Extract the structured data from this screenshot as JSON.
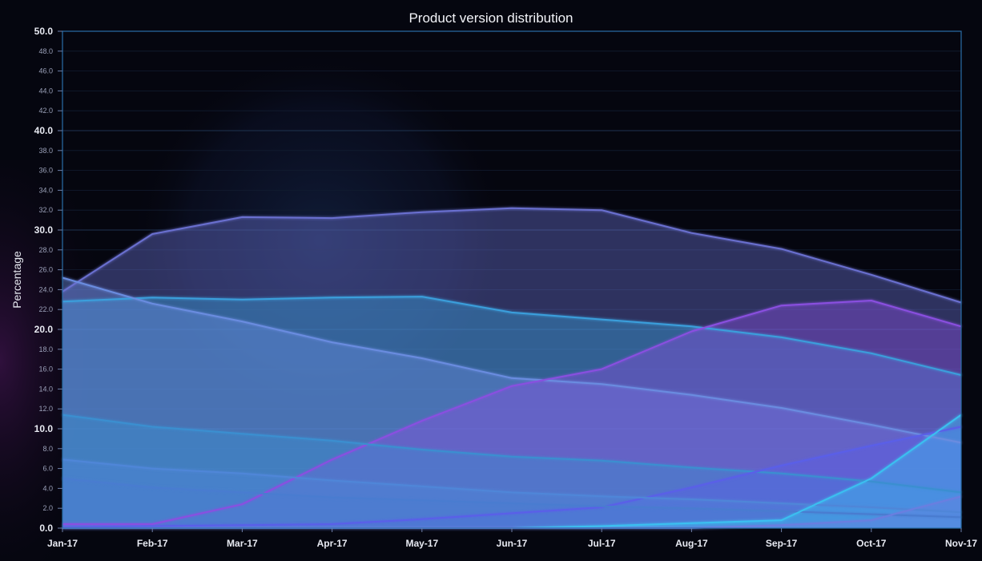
{
  "chart_data": {
    "type": "area",
    "title": "Product version distribution",
    "xlabel": "",
    "ylabel": "Percentage",
    "categories": [
      "Jan-17",
      "Feb-17",
      "Mar-17",
      "Apr-17",
      "May-17",
      "Jun-17",
      "Jul-17",
      "Aug-17",
      "Sep-17",
      "Oct-17",
      "Nov-17"
    ],
    "ylim": [
      0,
      50
    ],
    "y_major_ticks": [
      "0.0",
      "10.0",
      "20.0",
      "30.0",
      "40.0",
      "50.0"
    ],
    "y_minor_ticks": [
      "2.0",
      "4.0",
      "6.0",
      "8.0",
      "12.0",
      "14.0",
      "16.0",
      "18.0",
      "22.0",
      "24.0",
      "26.0",
      "28.0",
      "32.0",
      "34.0",
      "36.0",
      "38.0",
      "42.0",
      "44.0",
      "46.0",
      "48.0"
    ],
    "grid": true,
    "legend": "none",
    "series": [
      {
        "color": "#6a6fd0",
        "values": [
          23.8,
          29.6,
          31.3,
          31.2,
          31.8,
          32.2,
          32.0,
          29.7,
          28.1,
          25.5,
          22.7
        ]
      },
      {
        "color": "#3a9fdc",
        "values": [
          22.8,
          23.2,
          23.0,
          23.2,
          23.3,
          21.7,
          21.0,
          20.3,
          19.2,
          17.6,
          15.4
        ]
      },
      {
        "color": "#6a8ce0",
        "values": [
          25.2,
          22.6,
          20.8,
          18.7,
          17.1,
          15.1,
          14.5,
          13.4,
          12.1,
          10.4,
          8.6
        ]
      },
      {
        "color": "#8a4fe0",
        "values": [
          0.4,
          0.4,
          2.4,
          6.9,
          10.8,
          14.3,
          16.0,
          19.8,
          22.4,
          22.9,
          20.3
        ]
      },
      {
        "color": "#3a8fd0",
        "values": [
          11.4,
          10.2,
          9.5,
          8.8,
          7.9,
          7.2,
          6.8,
          6.1,
          5.5,
          4.7,
          3.6
        ]
      },
      {
        "color": "#5a5ee8",
        "values": [
          0.1,
          0.2,
          0.3,
          0.4,
          0.9,
          1.5,
          2.1,
          4.1,
          6.3,
          8.3,
          10.2
        ]
      },
      {
        "color": "#4f86d8",
        "values": [
          6.9,
          6.0,
          5.5,
          4.8,
          4.2,
          3.6,
          3.2,
          2.9,
          2.5,
          2.1,
          1.6
        ]
      },
      {
        "color": "#4a7cd0",
        "values": [
          5.0,
          4.1,
          3.6,
          3.1,
          2.8,
          2.5,
          2.2,
          2.0,
          1.7,
          1.4,
          1.1
        ]
      },
      {
        "color": "#3ac0f0",
        "values": [
          0.0,
          0.0,
          0.0,
          0.0,
          0.0,
          0.0,
          0.2,
          0.5,
          0.8,
          5.0,
          11.4
        ]
      },
      {
        "color": "#6a7ee0",
        "values": [
          0.0,
          0.0,
          0.0,
          0.0,
          0.0,
          0.0,
          0.0,
          0.0,
          0.3,
          0.8,
          3.2
        ]
      }
    ]
  }
}
